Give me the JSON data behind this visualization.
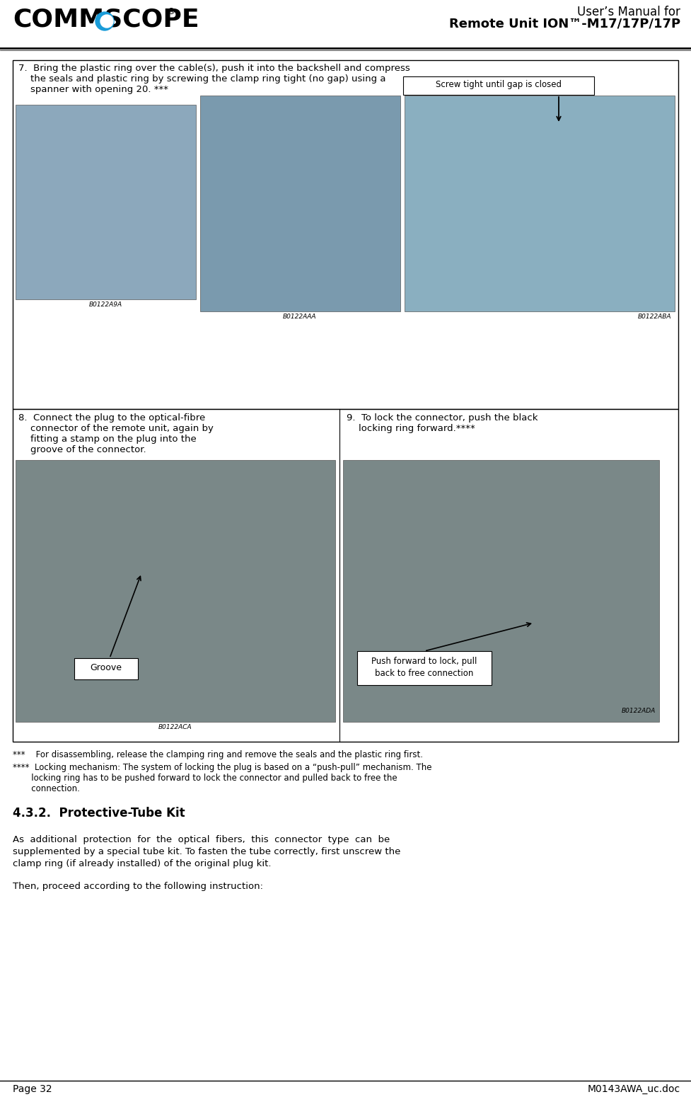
{
  "page_width": 9.77,
  "page_height": 15.67,
  "dpi": 100,
  "bg_color": "#ffffff",
  "header": {
    "title_line1": "User’s Manual for",
    "title_line2": "Remote Unit ION™-M17/17P/17P",
    "title_fontsize": 12,
    "title_color": "#000000"
  },
  "footer": {
    "left_text": "Page 32",
    "right_text": "M0143AWA_uc.doc",
    "fontsize": 10
  },
  "section7": {
    "text_line1": "7.  Bring the plastic ring over the cable(s), push it into the backshell and compress",
    "text_line2": "    the seals and plastic ring by screwing the clamp ring tight (no gap) using a",
    "text_line3": "    spanner with opening 20. ***",
    "callout_text": "Screw tight until gap is closed",
    "img1_label": "B0122A9A",
    "img2_label": "B0122AAA",
    "img3_label": "B0122ABA"
  },
  "section8": {
    "text": "8.  Connect the plug to the optical-fibre\n    connector of the remote unit, again by\n    fitting a stamp on the plug into the\n    groove of the connector.",
    "groove_label": "Groove",
    "img_label": "B0122ACA"
  },
  "section9": {
    "text": "9.  To lock the connector, push the black\n    locking ring forward.****",
    "callout_text": "Push forward to lock, pull\nback to free connection",
    "img_label": "B0122ADA"
  },
  "footnote1": "***    For disassembling, release the clamping ring and remove the seals and the plastic ring first.",
  "footnote2_line1": "****  Locking mechanism: The system of locking the plug is based on a “push-pull” mechanism. The",
  "footnote2_line2": "       locking ring has to be pushed forward to lock the connector and pulled back to free the",
  "footnote2_line3": "       connection.",
  "section432_title": "4.3.2.  Protective-Tube Kit",
  "section432_body1": "As  additional  protection  for  the  optical  fibers,  this  connector  type  can  be",
  "section432_body2": "supplemented by a special tube kit. To fasten the tube correctly, first unscrew the",
  "section432_body3": "clamp ring (if already installed) of the original plug kit.",
  "section432_body4": "Then, proceed according to the following instruction:"
}
